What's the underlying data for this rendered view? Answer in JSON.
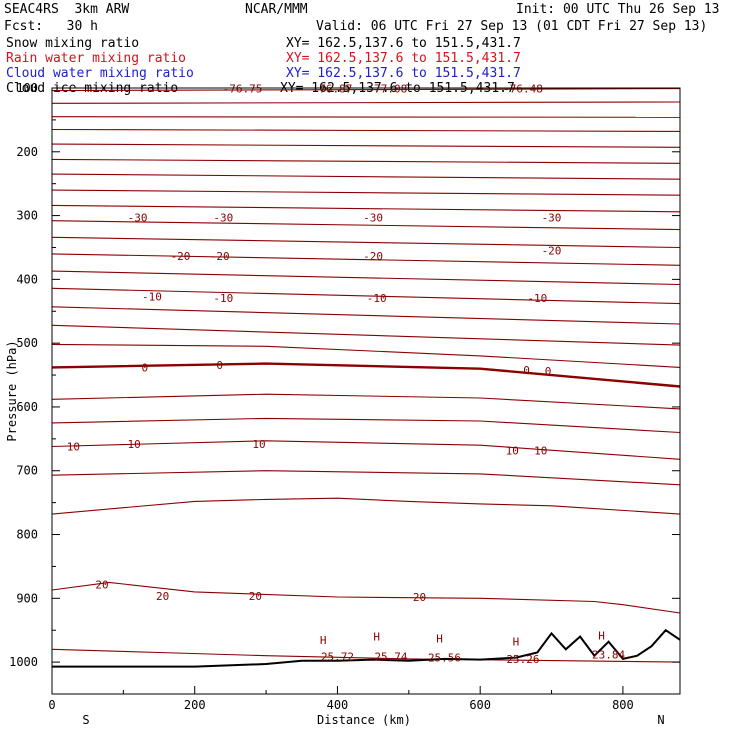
{
  "header": {
    "model": "SEAC4RS  3km ARW",
    "org": "NCAR/MMM",
    "init": "Init: 00 UTC Thu 26 Sep 13",
    "fcst": "Fcst:   30 h",
    "valid": "Valid: 06 UTC Fri 27 Sep 13 (01 CDT Fri 27 Sep 13)"
  },
  "fields": [
    {
      "label": "Snow mixing ratio",
      "xy": "XY= 162.5,137.6 to 151.5,431.7",
      "color": "#000000"
    },
    {
      "label": "Rain water mixing ratio",
      "xy": "XY= 162.5,137.6 to 151.5,431.7",
      "color": "#d4141c"
    },
    {
      "label": "Cloud water mixing ratio",
      "xy": "XY= 162.5,137.6 to 151.5,431.7",
      "color": "#2020c8"
    },
    {
      "label": "Cloud ice mixing ratio",
      "xy": "XY= 162.5,137.6 to 151.5,431.7",
      "color": "#000000"
    }
  ],
  "chart_data": {
    "type": "line",
    "title": "",
    "xlabel": "Distance (km)",
    "ylabel": "Pressure (hPa)",
    "xlim": [
      0,
      880
    ],
    "ylim": [
      1050,
      100
    ],
    "xticks": [
      0,
      200,
      400,
      600,
      800
    ],
    "yticks": [
      100,
      200,
      300,
      400,
      500,
      600,
      700,
      800,
      900,
      1000
    ],
    "x_end_labels": [
      "S",
      "N"
    ],
    "contour_color": "#8b0000",
    "contour_levels": [
      {
        "x": [
          0,
          880
        ],
        "y": [
          104,
          101
        ]
      },
      {
        "x": [
          0,
          880
        ],
        "y": [
          124,
          122
        ]
      },
      {
        "x": [
          0,
          880
        ],
        "y": [
          145,
          146
        ]
      },
      {
        "x": [
          0,
          880
        ],
        "y": [
          165,
          168
        ]
      },
      {
        "x": [
          0,
          880
        ],
        "y": [
          188,
          193
        ]
      },
      {
        "x": [
          0,
          880
        ],
        "y": [
          212,
          218
        ]
      },
      {
        "x": [
          0,
          880
        ],
        "y": [
          235,
          243
        ]
      },
      {
        "x": [
          0,
          880
        ],
        "y": [
          260,
          268
        ]
      },
      {
        "x": [
          0,
          880
        ],
        "y": [
          284,
          294
        ]
      },
      {
        "x": [
          0,
          880
        ],
        "y": [
          308,
          322
        ]
      },
      {
        "x": [
          0,
          880
        ],
        "y": [
          334,
          350
        ]
      },
      {
        "x": [
          0,
          880
        ],
        "y": [
          360,
          378
        ]
      },
      {
        "x": [
          0,
          880
        ],
        "y": [
          387,
          408
        ]
      },
      {
        "x": [
          0,
          880
        ],
        "y": [
          414,
          438
        ]
      },
      {
        "x": [
          0,
          880
        ],
        "y": [
          443,
          470
        ]
      },
      {
        "x": [
          0,
          880
        ],
        "y": [
          472,
          503
        ]
      },
      {
        "x": [
          0,
          300,
          600,
          880
        ],
        "y": [
          502,
          505,
          520,
          538
        ]
      },
      {
        "x": [
          0,
          300,
          600,
          880
        ],
        "y": [
          538,
          532,
          540,
          568
        ]
      },
      {
        "x": [
          0,
          300,
          600,
          880
        ],
        "y": [
          588,
          580,
          586,
          603
        ]
      },
      {
        "x": [
          0,
          300,
          600,
          880
        ],
        "y": [
          625,
          618,
          622,
          640
        ]
      },
      {
        "x": [
          0,
          300,
          600,
          880
        ],
        "y": [
          662,
          653,
          660,
          682
        ]
      },
      {
        "x": [
          0,
          300,
          600,
          880
        ],
        "y": [
          707,
          700,
          705,
          722
        ]
      },
      {
        "x": [
          0,
          100,
          200,
          300,
          400,
          500,
          600,
          700,
          880
        ],
        "y": [
          768,
          758,
          748,
          745,
          743,
          748,
          752,
          755,
          768
        ]
      },
      {
        "x": [
          0,
          80,
          200,
          400,
          600,
          760,
          800,
          880
        ],
        "y": [
          887,
          875,
          890,
          898,
          900,
          905,
          910,
          923
        ]
      },
      {
        "x": [
          0,
          150,
          300,
          500,
          880
        ],
        "y": [
          980,
          985,
          990,
          995,
          1000
        ]
      }
    ],
    "terrain": {
      "x": [
        0,
        100,
        200,
        300,
        350,
        400,
        450,
        500,
        550,
        600,
        650,
        680,
        700,
        720,
        740,
        760,
        780,
        800,
        820,
        840,
        860,
        880
      ],
      "p": [
        1007,
        1007,
        1007,
        1003,
        998,
        998,
        996,
        998,
        995,
        996,
        993,
        985,
        955,
        980,
        960,
        990,
        968,
        995,
        990,
        975,
        950,
        965
      ]
    },
    "contour_labels": [
      {
        "x": 267,
        "p": 101,
        "text": "-76.75"
      },
      {
        "x": 393,
        "p": 101,
        "text": "-76.87"
      },
      {
        "x": 470,
        "p": 101,
        "text": "-77.08"
      },
      {
        "x": 660,
        "p": 101,
        "text": "-76.48"
      },
      {
        "x": 120,
        "p": 303,
        "text": "-30"
      },
      {
        "x": 240,
        "p": 303,
        "text": "-30"
      },
      {
        "x": 450,
        "p": 303,
        "text": "-30"
      },
      {
        "x": 700,
        "p": 303,
        "text": "-30"
      },
      {
        "x": 180,
        "p": 363,
        "text": "-20"
      },
      {
        "x": 235,
        "p": 363,
        "text": "-20"
      },
      {
        "x": 450,
        "p": 363,
        "text": "-20"
      },
      {
        "x": 700,
        "p": 355,
        "text": "-20"
      },
      {
        "x": 140,
        "p": 427,
        "text": "-10"
      },
      {
        "x": 240,
        "p": 429,
        "text": "-10"
      },
      {
        "x": 455,
        "p": 429,
        "text": "-10"
      },
      {
        "x": 680,
        "p": 429,
        "text": "-10"
      },
      {
        "x": 130,
        "p": 538,
        "text": "0"
      },
      {
        "x": 235,
        "p": 534,
        "text": "0"
      },
      {
        "x": 665,
        "p": 542,
        "text": "0"
      },
      {
        "x": 695,
        "p": 544,
        "text": "0"
      },
      {
        "x": 30,
        "p": 662,
        "text": "10"
      },
      {
        "x": 115,
        "p": 658,
        "text": "10"
      },
      {
        "x": 290,
        "p": 658,
        "text": "10"
      },
      {
        "x": 645,
        "p": 668,
        "text": "10"
      },
      {
        "x": 685,
        "p": 668,
        "text": "10"
      },
      {
        "x": 70,
        "p": 878,
        "text": "20"
      },
      {
        "x": 155,
        "p": 896,
        "text": "20"
      },
      {
        "x": 285,
        "p": 896,
        "text": "20"
      },
      {
        "x": 515,
        "p": 898,
        "text": "20"
      },
      {
        "x": 400,
        "p": 991,
        "text": "25.72"
      },
      {
        "x": 475,
        "p": 991,
        "text": "25.74"
      },
      {
        "x": 550,
        "p": 993,
        "text": "25.56"
      },
      {
        "x": 660,
        "p": 995,
        "text": "25.26"
      },
      {
        "x": 780,
        "p": 988,
        "text": "23.84"
      }
    ],
    "high_markers": [
      {
        "x": 380,
        "p": 965,
        "text": "H"
      },
      {
        "x": 455,
        "p": 960,
        "text": "H"
      },
      {
        "x": 543,
        "p": 963,
        "text": "H"
      },
      {
        "x": 650,
        "p": 968,
        "text": "H"
      },
      {
        "x": 770,
        "p": 958,
        "text": "H"
      }
    ]
  }
}
